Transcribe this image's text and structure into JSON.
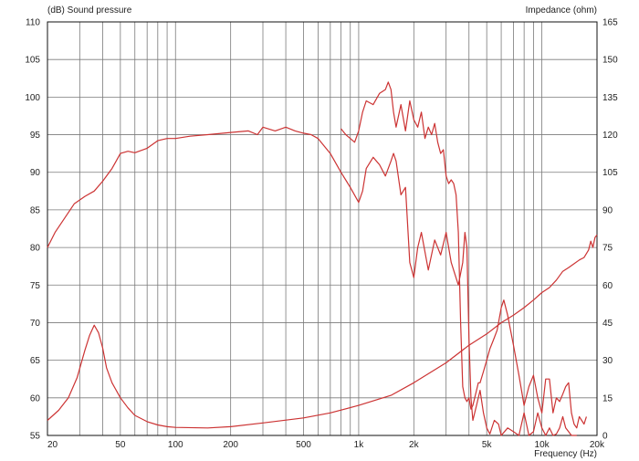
{
  "chart_data": {
    "type": "line",
    "title": "",
    "left_axis_label": "(dB)  Sound pressure",
    "right_axis_label": "Impedance  (ohm)",
    "xlabel": "Frequency  (Hz)",
    "x_scale": "log",
    "xlim": [
      20,
      20000
    ],
    "ylim_left": [
      55,
      110
    ],
    "ylim_right": [
      0,
      165
    ],
    "grid": true,
    "legend": "none",
    "x_tick_labels": [
      {
        "value": 20,
        "label": "20"
      },
      {
        "value": 50,
        "label": "50"
      },
      {
        "value": 100,
        "label": "100"
      },
      {
        "value": 200,
        "label": "200"
      },
      {
        "value": 500,
        "label": "500"
      },
      {
        "value": 1000,
        "label": "1k"
      },
      {
        "value": 2000,
        "label": "2k"
      },
      {
        "value": 5000,
        "label": "5k"
      },
      {
        "value": 10000,
        "label": "10k"
      },
      {
        "value": 20000,
        "label": "20k"
      }
    ],
    "y_left_ticks": [
      55,
      60,
      65,
      70,
      75,
      80,
      85,
      90,
      95,
      100,
      105,
      110
    ],
    "y_right_ticks": [
      0,
      15,
      30,
      45,
      60,
      75,
      90,
      105,
      120,
      135,
      150,
      165
    ],
    "series_color": "#cc3333",
    "series": [
      {
        "axis": "left",
        "x": [
          20,
          22,
          25,
          28,
          32,
          36,
          40,
          45,
          50,
          55,
          60,
          70,
          80,
          90,
          100,
          120,
          150,
          200,
          250,
          280,
          300,
          350,
          400,
          450,
          500,
          550,
          600,
          700,
          800,
          900,
          1000,
          1050,
          1100,
          1200,
          1300,
          1400,
          1500,
          1550,
          1600,
          1700,
          1800,
          1900,
          2000,
          2100,
          2200,
          2400,
          2600,
          2800,
          3000,
          3200,
          3500,
          3700,
          3800,
          3900,
          4000,
          4100,
          4200,
          4400,
          4600,
          4800,
          5000,
          5200,
          5500,
          5800,
          6000,
          6500,
          7000,
          7500,
          8000,
          8500,
          9000,
          9500,
          10000,
          10500,
          11000,
          11500,
          12000,
          12500,
          13000,
          13500,
          14000,
          14500,
          15000,
          15500
        ],
        "y": [
          80.0,
          82.0,
          84.0,
          85.8,
          86.8,
          87.5,
          88.8,
          90.5,
          92.5,
          92.8,
          92.6,
          93.2,
          94.2,
          94.5,
          94.5,
          94.8,
          95.0,
          95.3,
          95.5,
          95.0,
          96.0,
          95.5,
          96.0,
          95.5,
          95.2,
          95.0,
          94.5,
          92.5,
          90.0,
          88.0,
          86.0,
          87.5,
          90.5,
          92.0,
          91.0,
          89.5,
          91.5,
          92.5,
          91.5,
          87.0,
          88.0,
          78.0,
          76.0,
          80.0,
          82.0,
          77.0,
          81.0,
          79.0,
          82.0,
          78.0,
          75.0,
          78.0,
          82.0,
          80.0,
          68.0,
          60.0,
          57.0,
          59.0,
          61.0,
          58.0,
          56.0,
          55.2,
          57.0,
          56.5,
          55.0,
          56.0,
          55.5,
          55.0,
          58.0,
          55.0,
          55.5,
          58.0,
          56.0,
          55.0,
          56.0,
          55.0,
          55.2,
          56.0,
          57.5,
          56.0,
          55.5,
          55.0,
          55.0,
          54.8
        ]
      },
      {
        "axis": "left",
        "x": [
          800,
          850,
          900,
          950,
          1000,
          1050,
          1100,
          1200,
          1300,
          1400,
          1450,
          1500,
          1550,
          1600,
          1700,
          1800,
          1900,
          2000,
          2100,
          2200,
          2300,
          2400,
          2500,
          2600,
          2700,
          2800,
          2900,
          3000,
          3100,
          3200,
          3300,
          3400,
          3500,
          3600,
          3700,
          3800,
          3900,
          4000,
          4100,
          4200,
          4300,
          4400,
          4500,
          4600,
          4800,
          5000,
          5200,
          5400,
          5500,
          5700,
          6000,
          6200,
          6500,
          7000,
          7500,
          8000,
          8500,
          9000,
          9500,
          10000,
          10500,
          11000,
          11500,
          12000,
          12500,
          13000,
          13500,
          14000,
          14500,
          15000,
          15500,
          16000,
          16500,
          17000,
          17500
        ],
        "y": [
          95.8,
          95.0,
          94.5,
          94.0,
          95.5,
          98.0,
          99.5,
          99.0,
          100.5,
          101.0,
          102.0,
          101.0,
          98.0,
          96.0,
          99.0,
          95.5,
          99.5,
          97.0,
          96.0,
          98.0,
          94.5,
          96.0,
          95.0,
          96.5,
          94.0,
          92.5,
          93.0,
          89.5,
          88.5,
          89.0,
          88.5,
          87.0,
          82.0,
          70.0,
          61.5,
          60.0,
          59.5,
          60.0,
          58.5,
          59.0,
          60.0,
          61.0,
          62.0,
          62.0,
          63.5,
          65.0,
          66.5,
          67.5,
          68.0,
          69.0,
          72.0,
          73.0,
          71.0,
          67.0,
          63.0,
          59.0,
          61.5,
          63.0,
          60.0,
          58.0,
          62.5,
          62.5,
          58.0,
          60.0,
          59.5,
          60.5,
          61.5,
          62.0,
          58.0,
          56.5,
          56.0,
          57.5,
          57.0,
          56.5,
          57.5
        ]
      },
      {
        "axis": "right",
        "x": [
          20,
          23,
          26,
          29,
          32,
          34,
          36,
          38,
          40,
          42,
          45,
          50,
          55,
          60,
          70,
          80,
          90,
          100,
          150,
          200,
          300,
          500,
          700,
          1000,
          1500,
          2000,
          3000,
          4000,
          5000,
          6000,
          7000,
          8000,
          9000,
          10000,
          11000,
          12000,
          13000,
          14000,
          15000,
          16000,
          17000,
          18000,
          18500,
          19000,
          19500,
          20000
        ],
        "y": [
          6.0,
          10.0,
          15.0,
          23.0,
          34.0,
          40.0,
          44.0,
          41.0,
          35.0,
          27.0,
          21.0,
          15.0,
          11.0,
          8.0,
          5.5,
          4.2,
          3.5,
          3.2,
          3.0,
          3.5,
          5.0,
          7.0,
          9.0,
          12.0,
          16.0,
          21.0,
          29.0,
          36.0,
          40.5,
          45.0,
          48.0,
          51.0,
          54.0,
          57.0,
          59.0,
          62.0,
          65.5,
          67.0,
          68.5,
          70.0,
          71.0,
          74.0,
          77.5,
          75.0,
          79.0,
          80.0
        ]
      }
    ]
  }
}
